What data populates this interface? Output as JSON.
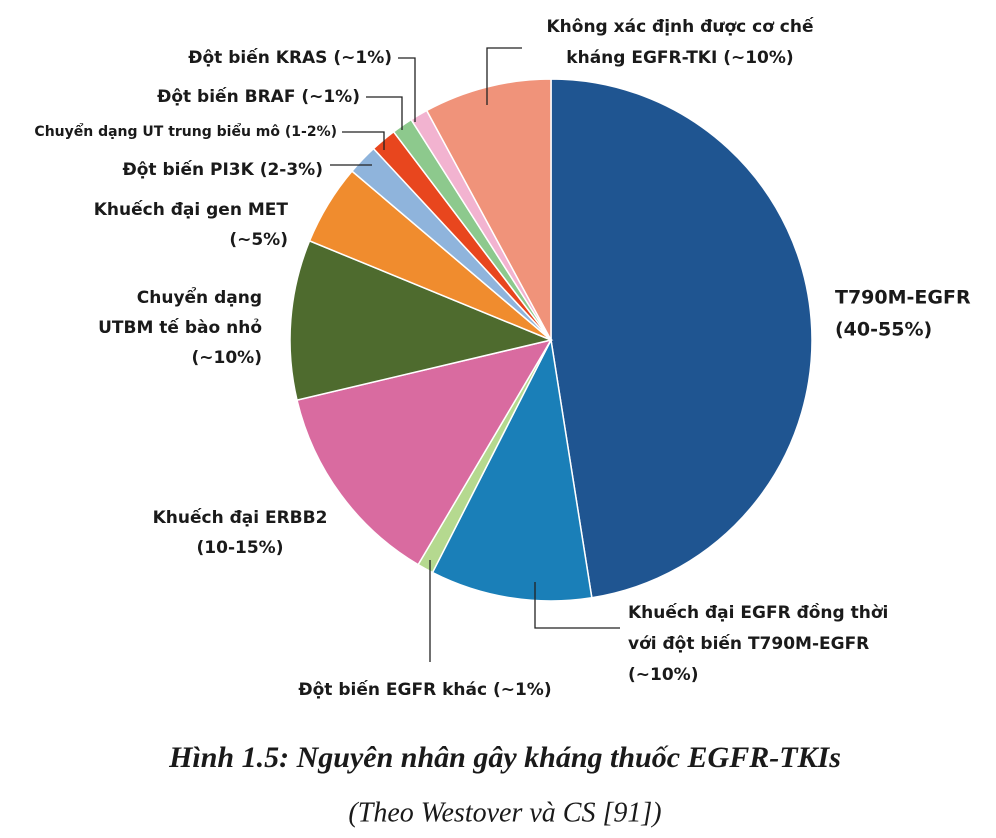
{
  "chart_data": {
    "type": "pie",
    "title": "Hình 1.5: Nguyên nhân gây kháng thuốc EGFR-TKIs",
    "subtitle": "(Theo Westover và CS [91])",
    "categories": [
      [
        "T790M-EGFR",
        "(40-55%)"
      ],
      [
        "Khuếch đại EGFR đồng thời",
        "với đột biến T790M-EGFR",
        "(~10%)"
      ],
      [
        "Đột biến EGFR khác (~1%)"
      ],
      [
        "Khuếch đại ERBB2",
        "(10-15%)"
      ],
      [
        "Chuyển dạng",
        "UTBM tế bào nhỏ",
        "(~10%)"
      ],
      [
        "Khuếch đại gen MET",
        "(~5%)"
      ],
      [
        "Đột biến PI3K (2-3%)"
      ],
      [
        "Chuyển dạng UT trung biểu mô (1-2%)"
      ],
      [
        "Đột biến BRAF (~1%)"
      ],
      [
        "Đột biến KRAS (~1%)"
      ],
      [
        "Không xác định được cơ chế",
        "kháng EGFR-TKI (~10%)"
      ]
    ],
    "values": [
      47.5,
      10,
      1,
      12.8,
      9.9,
      5,
      1.9,
      1.6,
      1.3,
      1.1,
      7.9
    ],
    "colors": [
      "#1f5591",
      "#1a7fb8",
      "#b5d98f",
      "#d96ba0",
      "#4e6b2e",
      "#f08c2e",
      "#8fb4dc",
      "#e8461e",
      "#8dc98d",
      "#f2b3d0",
      "#f0937a"
    ]
  }
}
